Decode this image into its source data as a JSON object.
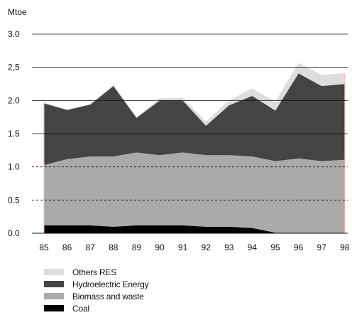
{
  "chart_data": {
    "type": "area",
    "stacked": true,
    "title": "",
    "unit_label": "Mtoe",
    "xlabel": "",
    "ylabel": "Mtoe",
    "ylim": [
      0,
      3.0
    ],
    "yticks": [
      0.0,
      0.5,
      1.0,
      1.5,
      2.0,
      2.5,
      3.0
    ],
    "ytick_labels": [
      "0.0",
      "0.5",
      "1.0",
      "1.5",
      "2.0",
      "2,5",
      "3.0"
    ],
    "categories": [
      "85",
      "86",
      "87",
      "88",
      "89",
      "90",
      "91",
      "92",
      "93",
      "94",
      "95",
      "96",
      "97",
      "98"
    ],
    "grid": true,
    "legend_position": "bottom-left",
    "series": [
      {
        "name": "Coal",
        "color": "#000000",
        "values": [
          0.12,
          0.12,
          0.12,
          0.1,
          0.12,
          0.12,
          0.12,
          0.1,
          0.1,
          0.08,
          0.01,
          0.01,
          0.01,
          0.01
        ]
      },
      {
        "name": "Biomass and waste",
        "color": "#aaaaaa",
        "values": [
          0.91,
          1.0,
          1.04,
          1.06,
          1.1,
          1.06,
          1.1,
          1.08,
          1.08,
          1.08,
          1.08,
          1.12,
          1.08,
          1.1
        ]
      },
      {
        "name": "Hydroelectric Energy",
        "color": "#444444",
        "values": [
          0.93,
          0.74,
          0.78,
          1.06,
          0.52,
          0.82,
          0.78,
          0.44,
          0.75,
          0.91,
          0.76,
          1.28,
          1.13,
          1.14
        ]
      },
      {
        "name": "Others RES",
        "color": "#dddddd",
        "values": [
          0.0,
          0.0,
          0.0,
          0.01,
          0.01,
          0.03,
          0.04,
          0.06,
          0.07,
          0.11,
          0.13,
          0.15,
          0.16,
          0.16
        ]
      }
    ],
    "legend_order": [
      "Others RES",
      "Hydroelectric Energy",
      "Biomass and waste",
      "Coal"
    ]
  }
}
